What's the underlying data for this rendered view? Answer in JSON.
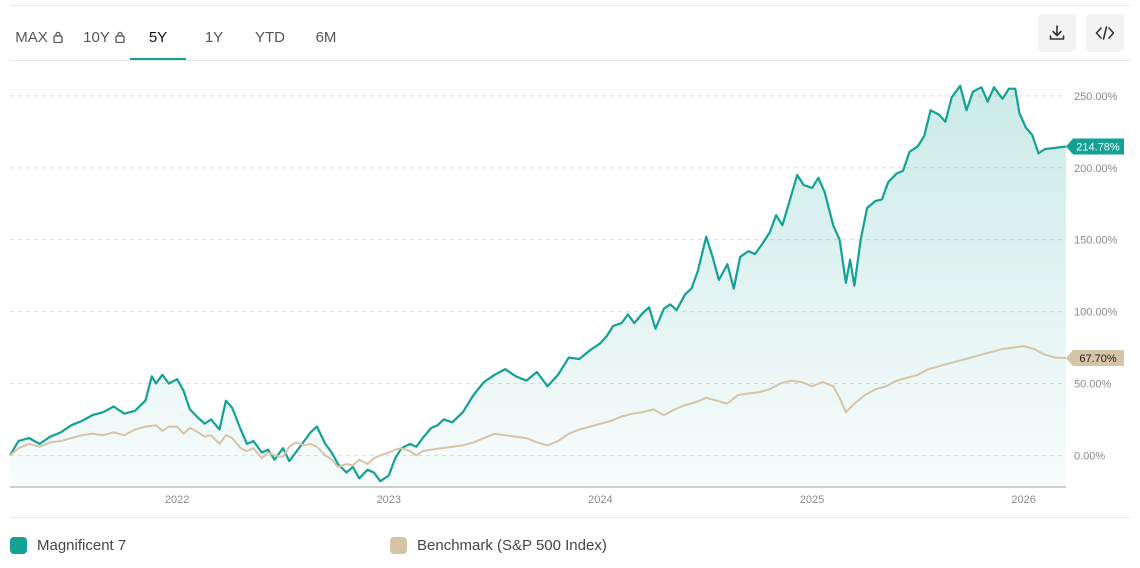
{
  "tabs": [
    {
      "label": "MAX",
      "locked": true
    },
    {
      "label": "10Y",
      "locked": true
    },
    {
      "label": "5Y",
      "locked": false,
      "active": true
    },
    {
      "label": "1Y",
      "locked": false
    },
    {
      "label": "YTD",
      "locked": false
    },
    {
      "label": "6M",
      "locked": false
    }
  ],
  "toolbar": {
    "download_icon": "download-icon",
    "embed_icon": "code-embed-icon"
  },
  "colors": {
    "primary": "#12a193",
    "benchmark": "#d5c4a8",
    "grid": "#dedede",
    "axis": "#bfbfbf"
  },
  "legend": {
    "primary_label": "Magnificent 7",
    "benchmark_label": "Benchmark (S&P 500 Index)"
  },
  "chart_data": {
    "type": "line",
    "x_ticks": [
      "2022",
      "2023",
      "2024",
      "2025",
      "2026"
    ],
    "x_range": [
      2021.21,
      2026.2
    ],
    "y_ticks": [
      "250.00%",
      "200.00%",
      "150.00%",
      "100.00%",
      "50.00%",
      "0.00%"
    ],
    "y_tick_values": [
      250,
      200,
      150,
      100,
      50,
      0
    ],
    "ylim": [
      -22,
      268
    ],
    "end_labels": {
      "primary": "214.78%",
      "benchmark": "67.70%"
    },
    "series": [
      {
        "name": "Magnificent 7",
        "fill": true,
        "points": [
          [
            2021.21,
            0
          ],
          [
            2021.25,
            10
          ],
          [
            2021.3,
            12
          ],
          [
            2021.35,
            8
          ],
          [
            2021.4,
            13
          ],
          [
            2021.45,
            16
          ],
          [
            2021.5,
            21
          ],
          [
            2021.55,
            24
          ],
          [
            2021.6,
            28
          ],
          [
            2021.65,
            30
          ],
          [
            2021.7,
            34
          ],
          [
            2021.75,
            29
          ],
          [
            2021.8,
            31
          ],
          [
            2021.85,
            38
          ],
          [
            2021.88,
            55
          ],
          [
            2021.9,
            50
          ],
          [
            2021.93,
            56
          ],
          [
            2021.96,
            50
          ],
          [
            2022.0,
            53
          ],
          [
            2022.03,
            45
          ],
          [
            2022.06,
            32
          ],
          [
            2022.1,
            26
          ],
          [
            2022.13,
            22
          ],
          [
            2022.16,
            25
          ],
          [
            2022.2,
            18
          ],
          [
            2022.23,
            38
          ],
          [
            2022.26,
            33
          ],
          [
            2022.3,
            18
          ],
          [
            2022.33,
            8
          ],
          [
            2022.36,
            10
          ],
          [
            2022.4,
            2
          ],
          [
            2022.43,
            4
          ],
          [
            2022.46,
            -3
          ],
          [
            2022.5,
            5
          ],
          [
            2022.53,
            -4
          ],
          [
            2022.56,
            2
          ],
          [
            2022.6,
            10
          ],
          [
            2022.63,
            16
          ],
          [
            2022.66,
            20
          ],
          [
            2022.7,
            8
          ],
          [
            2022.73,
            2
          ],
          [
            2022.76,
            -6
          ],
          [
            2022.8,
            -12
          ],
          [
            2022.83,
            -8
          ],
          [
            2022.86,
            -16
          ],
          [
            2022.9,
            -10
          ],
          [
            2022.93,
            -12
          ],
          [
            2022.96,
            -18
          ],
          [
            2023.0,
            -14
          ],
          [
            2023.03,
            -2
          ],
          [
            2023.06,
            5
          ],
          [
            2023.1,
            8
          ],
          [
            2023.13,
            6
          ],
          [
            2023.16,
            12
          ],
          [
            2023.2,
            19
          ],
          [
            2023.23,
            21
          ],
          [
            2023.26,
            25
          ],
          [
            2023.3,
            23
          ],
          [
            2023.35,
            30
          ],
          [
            2023.4,
            42
          ],
          [
            2023.45,
            51
          ],
          [
            2023.5,
            56
          ],
          [
            2023.55,
            60
          ],
          [
            2023.6,
            55
          ],
          [
            2023.65,
            52
          ],
          [
            2023.7,
            58
          ],
          [
            2023.75,
            48
          ],
          [
            2023.8,
            56
          ],
          [
            2023.85,
            68
          ],
          [
            2023.9,
            67
          ],
          [
            2023.95,
            73
          ],
          [
            2024.0,
            78
          ],
          [
            2024.03,
            83
          ],
          [
            2024.06,
            90
          ],
          [
            2024.1,
            92
          ],
          [
            2024.13,
            98
          ],
          [
            2024.16,
            92
          ],
          [
            2024.2,
            99
          ],
          [
            2024.23,
            103
          ],
          [
            2024.26,
            88
          ],
          [
            2024.3,
            102
          ],
          [
            2024.33,
            105
          ],
          [
            2024.36,
            101
          ],
          [
            2024.4,
            112
          ],
          [
            2024.43,
            116
          ],
          [
            2024.46,
            128
          ],
          [
            2024.5,
            152
          ],
          [
            2024.53,
            138
          ],
          [
            2024.56,
            122
          ],
          [
            2024.6,
            133
          ],
          [
            2024.63,
            116
          ],
          [
            2024.66,
            138
          ],
          [
            2024.7,
            142
          ],
          [
            2024.73,
            140
          ],
          [
            2024.76,
            146
          ],
          [
            2024.8,
            155
          ],
          [
            2024.83,
            167
          ],
          [
            2024.86,
            160
          ],
          [
            2024.9,
            180
          ],
          [
            2024.93,
            195
          ],
          [
            2024.96,
            188
          ],
          [
            2025.0,
            186
          ],
          [
            2025.03,
            193
          ],
          [
            2025.06,
            183
          ],
          [
            2025.1,
            160
          ],
          [
            2025.13,
            150
          ],
          [
            2025.16,
            120
          ],
          [
            2025.18,
            136
          ],
          [
            2025.2,
            118
          ],
          [
            2025.23,
            150
          ],
          [
            2025.26,
            172
          ],
          [
            2025.3,
            177
          ],
          [
            2025.33,
            178
          ],
          [
            2025.36,
            190
          ],
          [
            2025.4,
            196
          ],
          [
            2025.43,
            198
          ],
          [
            2025.46,
            211
          ],
          [
            2025.5,
            215
          ],
          [
            2025.53,
            222
          ],
          [
            2025.56,
            240
          ],
          [
            2025.6,
            237
          ],
          [
            2025.63,
            232
          ],
          [
            2025.66,
            249
          ],
          [
            2025.7,
            257
          ],
          [
            2025.73,
            240
          ],
          [
            2025.76,
            253
          ],
          [
            2025.8,
            256
          ],
          [
            2025.83,
            246
          ],
          [
            2025.86,
            256
          ],
          [
            2025.9,
            248
          ],
          [
            2025.93,
            255
          ],
          [
            2025.96,
            255
          ],
          [
            2025.98,
            238
          ],
          [
            2026.01,
            228
          ],
          [
            2026.04,
            223
          ],
          [
            2026.07,
            210
          ],
          [
            2026.1,
            213
          ],
          [
            2026.2,
            214.78
          ]
        ]
      },
      {
        "name": "Benchmark (S&P 500 Index)",
        "fill": false,
        "points": [
          [
            2021.21,
            0
          ],
          [
            2021.25,
            5
          ],
          [
            2021.3,
            8
          ],
          [
            2021.35,
            6
          ],
          [
            2021.4,
            9
          ],
          [
            2021.45,
            10
          ],
          [
            2021.5,
            12
          ],
          [
            2021.55,
            14
          ],
          [
            2021.6,
            15
          ],
          [
            2021.65,
            14
          ],
          [
            2021.7,
            16
          ],
          [
            2021.75,
            14
          ],
          [
            2021.8,
            18
          ],
          [
            2021.85,
            20
          ],
          [
            2021.9,
            21
          ],
          [
            2021.93,
            17
          ],
          [
            2021.96,
            20
          ],
          [
            2022.0,
            20
          ],
          [
            2022.03,
            15
          ],
          [
            2022.06,
            19
          ],
          [
            2022.1,
            16
          ],
          [
            2022.13,
            13
          ],
          [
            2022.16,
            14
          ],
          [
            2022.2,
            8
          ],
          [
            2022.23,
            14
          ],
          [
            2022.26,
            12
          ],
          [
            2022.3,
            5
          ],
          [
            2022.33,
            3
          ],
          [
            2022.36,
            5
          ],
          [
            2022.4,
            -2
          ],
          [
            2022.43,
            2
          ],
          [
            2022.46,
            0
          ],
          [
            2022.5,
            -1
          ],
          [
            2022.53,
            6
          ],
          [
            2022.56,
            9
          ],
          [
            2022.6,
            7
          ],
          [
            2022.63,
            8
          ],
          [
            2022.66,
            6
          ],
          [
            2022.7,
            0
          ],
          [
            2022.73,
            -3
          ],
          [
            2022.76,
            -8
          ],
          [
            2022.8,
            -6
          ],
          [
            2022.83,
            -7
          ],
          [
            2022.86,
            -3
          ],
          [
            2022.9,
            -6
          ],
          [
            2022.93,
            -2
          ],
          [
            2022.96,
            0
          ],
          [
            2023.0,
            2
          ],
          [
            2023.03,
            4
          ],
          [
            2023.06,
            5
          ],
          [
            2023.1,
            3
          ],
          [
            2023.13,
            0
          ],
          [
            2023.16,
            3
          ],
          [
            2023.2,
            4
          ],
          [
            2023.25,
            5
          ],
          [
            2023.3,
            6
          ],
          [
            2023.35,
            7
          ],
          [
            2023.4,
            9
          ],
          [
            2023.45,
            12
          ],
          [
            2023.5,
            15
          ],
          [
            2023.55,
            14
          ],
          [
            2023.6,
            13
          ],
          [
            2023.65,
            12
          ],
          [
            2023.7,
            9
          ],
          [
            2023.75,
            7
          ],
          [
            2023.8,
            10
          ],
          [
            2023.85,
            15
          ],
          [
            2023.9,
            18
          ],
          [
            2023.95,
            20
          ],
          [
            2024.0,
            22
          ],
          [
            2024.05,
            24
          ],
          [
            2024.1,
            27
          ],
          [
            2024.15,
            29
          ],
          [
            2024.2,
            30
          ],
          [
            2024.25,
            32
          ],
          [
            2024.3,
            28
          ],
          [
            2024.35,
            32
          ],
          [
            2024.4,
            35
          ],
          [
            2024.45,
            37
          ],
          [
            2024.5,
            40
          ],
          [
            2024.55,
            38
          ],
          [
            2024.6,
            36
          ],
          [
            2024.65,
            42
          ],
          [
            2024.7,
            43
          ],
          [
            2024.75,
            44
          ],
          [
            2024.8,
            46
          ],
          [
            2024.85,
            50
          ],
          [
            2024.9,
            52
          ],
          [
            2024.95,
            51
          ],
          [
            2025.0,
            48
          ],
          [
            2025.05,
            51
          ],
          [
            2025.1,
            48
          ],
          [
            2025.13,
            40
          ],
          [
            2025.16,
            30
          ],
          [
            2025.2,
            36
          ],
          [
            2025.25,
            42
          ],
          [
            2025.3,
            46
          ],
          [
            2025.35,
            48
          ],
          [
            2025.4,
            52
          ],
          [
            2025.45,
            54
          ],
          [
            2025.5,
            56
          ],
          [
            2025.55,
            60
          ],
          [
            2025.6,
            62
          ],
          [
            2025.65,
            64
          ],
          [
            2025.7,
            66
          ],
          [
            2025.75,
            68
          ],
          [
            2025.8,
            70
          ],
          [
            2025.85,
            72
          ],
          [
            2025.9,
            74
          ],
          [
            2025.95,
            75
          ],
          [
            2026.0,
            76
          ],
          [
            2026.05,
            74
          ],
          [
            2026.1,
            70
          ],
          [
            2026.15,
            68
          ],
          [
            2026.2,
            67.7
          ]
        ]
      }
    ]
  }
}
